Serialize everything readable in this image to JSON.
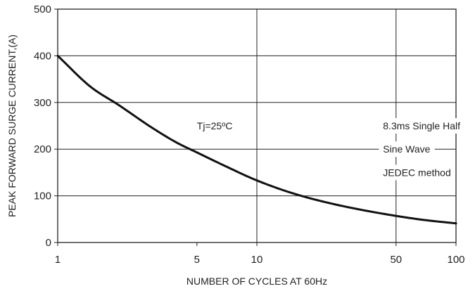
{
  "chart_data": {
    "type": "line",
    "xlabel": "NUMBER OF CYCLES AT 60Hz",
    "ylabel": "PEAK FORWARD SURGE CURRENT,(A)",
    "x_scale": "log",
    "xlim": [
      1,
      100
    ],
    "ylim": [
      0,
      500
    ],
    "x_ticks": [
      1,
      5,
      10,
      50,
      100
    ],
    "y_ticks": [
      0,
      100,
      200,
      300,
      400,
      500
    ],
    "x_gridlines": [
      10,
      50
    ],
    "y_gridlines": [
      100,
      200,
      300,
      400
    ],
    "grid": true,
    "series": [
      {
        "x": [
          1,
          1.5,
          2,
          3,
          4,
          5,
          7,
          10,
          15,
          20,
          30,
          50,
          70,
          100
        ],
        "y": [
          400,
          330,
          296,
          245,
          213,
          193,
          163,
          133,
          106,
          91,
          74,
          57,
          48,
          41
        ]
      }
    ],
    "annotations": [
      {
        "text": "Tj=25ºC",
        "x": 5,
        "y": 250
      },
      {
        "text": "8.3ms Single Half",
        "x": 43,
        "y": 250
      },
      {
        "text": "Sine Wave",
        "x": 43,
        "y": 200
      },
      {
        "text": "JEDEC method",
        "x": 43,
        "y": 150
      }
    ]
  }
}
